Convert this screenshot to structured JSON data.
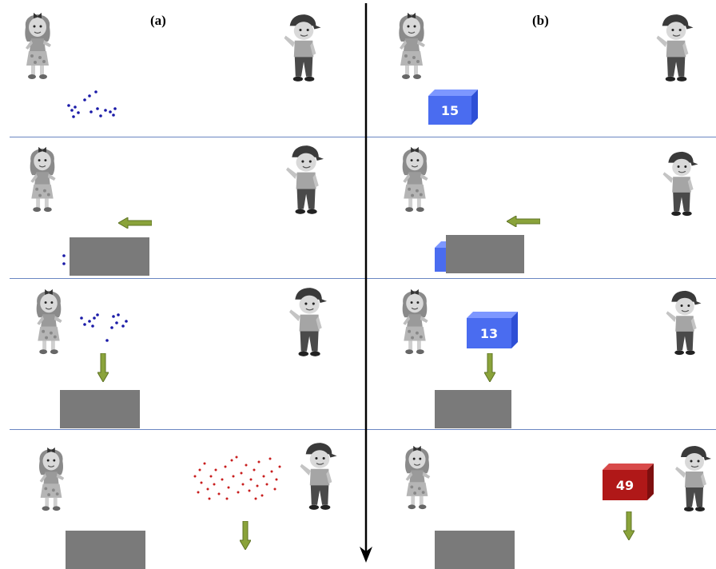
{
  "panels": {
    "a": {
      "label": "(a)"
    },
    "b": {
      "label": "(b)"
    }
  },
  "cubes": {
    "b_row1": {
      "value": "15",
      "color": "#4a6cf0"
    },
    "b_row3": {
      "value": "13",
      "color": "#4a6cf0"
    },
    "b_row4": {
      "value": "49",
      "color": "#b01818"
    }
  },
  "colors": {
    "blue_dot": "#1a1aa8",
    "red_dot": "#c81e1e",
    "arrow": "#8aa33a",
    "box": "#7a7a7a",
    "divider": "#6a86c2"
  }
}
